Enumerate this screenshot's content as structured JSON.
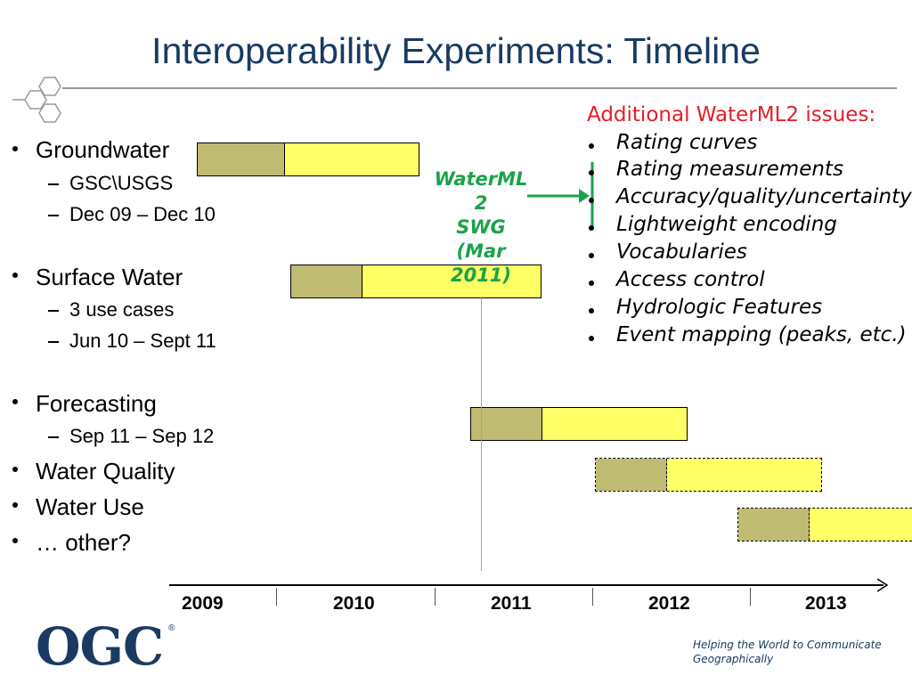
{
  "title": "Interoperability Experiments: Timeline",
  "bullets": [
    {
      "label": "Groundwater",
      "subs": [
        "GSC\\USGS",
        "Dec 09 – Dec 10"
      ]
    },
    {
      "label": "Surface Water",
      "subs": [
        "3 use cases",
        "Jun 10 – Sept 11"
      ]
    },
    {
      "label": "Forecasting",
      "subs": [
        "Sep 11 – Sep 12"
      ]
    },
    {
      "label": "Water Quality",
      "subs": []
    },
    {
      "label": "Water Use",
      "subs": []
    },
    {
      "label": "… other?",
      "subs": []
    }
  ],
  "swg_note": [
    "WaterML",
    "2",
    "SWG",
    "(Mar",
    "2011)"
  ],
  "issues": {
    "title": "Additional WaterML2 issues:",
    "items": [
      "Rating curves",
      "Rating measurements",
      "Accuracy/quality/uncertainty",
      "Lightweight encoding",
      "Vocabularies",
      "Access control",
      "Hydrologic Features",
      "Event mapping (peaks, etc.)"
    ]
  },
  "timeline": {
    "years": [
      "2009",
      "2010",
      "2011",
      "2012",
      "2013"
    ]
  },
  "colors": {
    "title": "#1b3a63",
    "bar_olive": "#bfbb72",
    "bar_yellow": "#ffff66",
    "swg_green": "#1aa34a",
    "issues_title": "#e0202a"
  },
  "logo": {
    "text": "OGC",
    "mark": "®"
  },
  "tagline": "Helping the World to Communicate Geographically"
}
